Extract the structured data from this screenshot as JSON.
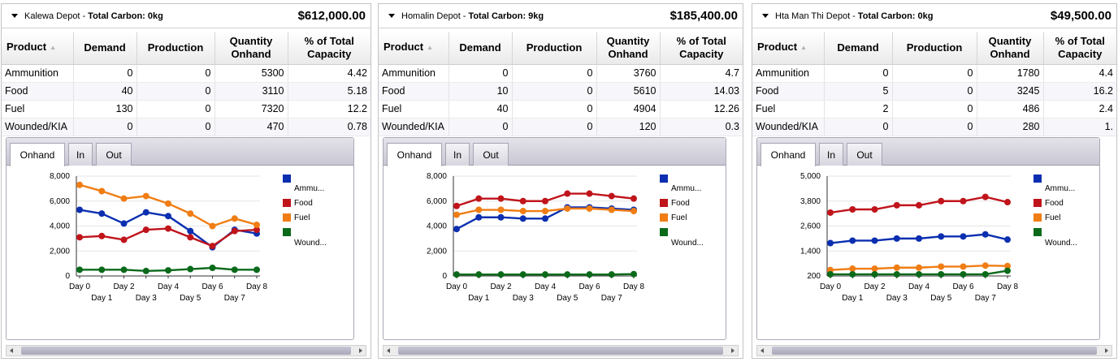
{
  "ui": {
    "total_carbon_label": "Total Carbon:",
    "separator": "-",
    "columns": [
      "Product",
      "Demand",
      "Production",
      "Quantity Onhand",
      "% of Total Capacity"
    ],
    "tabs": [
      "Onhand",
      "In",
      "Out"
    ],
    "sort_icon": "sort-ascending-icon"
  },
  "colors": {
    "ammunition": "#0b2fb0",
    "food": "#c0141b",
    "fuel": "#f07d14",
    "wounded": "#0a6a1a"
  },
  "depots": [
    {
      "name": "Kalewa Depot",
      "carbon": "0kg",
      "money": "$612,000.00",
      "rows": [
        {
          "product": "Ammunition",
          "demand": "0",
          "production": "0",
          "onhand": "5300",
          "pct": "4.42"
        },
        {
          "product": "Food",
          "demand": "40",
          "production": "0",
          "onhand": "3110",
          "pct": "5.18"
        },
        {
          "product": "Fuel",
          "demand": "130",
          "production": "0",
          "onhand": "7320",
          "pct": "12.2"
        },
        {
          "product": "Wounded/KIA",
          "demand": "0",
          "production": "0",
          "onhand": "470",
          "pct": "0.78"
        }
      ],
      "chart_data": {
        "type": "line",
        "x": [
          "Day 0",
          "Day 1",
          "Day 2",
          "Day 3",
          "Day 4",
          "Day 5",
          "Day 6",
          "Day 7",
          "Day 8"
        ],
        "y_ticks": [
          "0",
          "2,000",
          "4,000",
          "6,000",
          "8,000"
        ],
        "ylim": [
          0,
          8000
        ],
        "legend": [
          "Ammu...",
          "Food",
          "Fuel",
          "Wound..."
        ],
        "series": [
          {
            "name": "Ammu...",
            "color": "#0b2fb0",
            "values": [
              5300,
              5000,
              4200,
              5100,
              4800,
              3600,
              2300,
              3700,
              3400
            ]
          },
          {
            "name": "Food",
            "color": "#c0141b",
            "values": [
              3100,
              3200,
              2900,
              3700,
              3800,
              3100,
              2400,
              3600,
              3700
            ]
          },
          {
            "name": "Fuel",
            "color": "#f07d14",
            "values": [
              7300,
              6800,
              6200,
              6400,
              5800,
              5000,
              4000,
              4600,
              4100
            ]
          },
          {
            "name": "Wound...",
            "color": "#0a6a1a",
            "values": [
              500,
              500,
              500,
              400,
              450,
              550,
              650,
              500,
              500
            ]
          }
        ]
      }
    },
    {
      "name": "Homalin Depot",
      "carbon": "9kg",
      "money": "$185,400.00",
      "rows": [
        {
          "product": "Ammunition",
          "demand": "0",
          "production": "0",
          "onhand": "3760",
          "pct": "4.7"
        },
        {
          "product": "Food",
          "demand": "10",
          "production": "0",
          "onhand": "5610",
          "pct": "14.03"
        },
        {
          "product": "Fuel",
          "demand": "40",
          "production": "0",
          "onhand": "4904",
          "pct": "12.26"
        },
        {
          "product": "Wounded/KIA",
          "demand": "0",
          "production": "0",
          "onhand": "120",
          "pct": "0.3"
        }
      ],
      "chart_data": {
        "type": "line",
        "x": [
          "Day 0",
          "Day 1",
          "Day 2",
          "Day 3",
          "Day 4",
          "Day 5",
          "Day 6",
          "Day 7",
          "Day 8"
        ],
        "y_ticks": [
          "0",
          "2,000",
          "4,000",
          "6,000",
          "8,000"
        ],
        "ylim": [
          0,
          8000
        ],
        "legend": [
          "Ammu...",
          "Food",
          "Fuel",
          "Wound..."
        ],
        "series": [
          {
            "name": "Ammu...",
            "color": "#0b2fb0",
            "values": [
              3760,
              4700,
              4700,
              4600,
              4600,
              5500,
              5500,
              5400,
              5300
            ]
          },
          {
            "name": "Food",
            "color": "#c0141b",
            "values": [
              5610,
              6200,
              6200,
              6000,
              6000,
              6600,
              6600,
              6400,
              6200
            ]
          },
          {
            "name": "Fuel",
            "color": "#f07d14",
            "values": [
              4904,
              5300,
              5300,
              5200,
              5200,
              5400,
              5400,
              5300,
              5200
            ]
          },
          {
            "name": "Wound...",
            "color": "#0a6a1a",
            "values": [
              120,
              120,
              120,
              120,
              120,
              120,
              120,
              120,
              150
            ]
          }
        ]
      }
    },
    {
      "name": "Hta Man Thi Depot",
      "carbon": "0kg",
      "money": "$49,500.00",
      "rows": [
        {
          "product": "Ammunition",
          "demand": "0",
          "production": "0",
          "onhand": "1780",
          "pct": "4.4"
        },
        {
          "product": "Food",
          "demand": "5",
          "production": "0",
          "onhand": "3245",
          "pct": "16.2"
        },
        {
          "product": "Fuel",
          "demand": "2",
          "production": "0",
          "onhand": "486",
          "pct": "2.4"
        },
        {
          "product": "Wounded/KIA",
          "demand": "0",
          "production": "0",
          "onhand": "280",
          "pct": "1."
        }
      ],
      "chart_data": {
        "type": "line",
        "x": [
          "Day 0",
          "Day 1",
          "Day 2",
          "Day 3",
          "Day 4",
          "Day 5",
          "Day 6",
          "Day 7",
          "Day 8"
        ],
        "y_ticks": [
          "200",
          "1,400",
          "2,600",
          "3,800",
          "5,000"
        ],
        "ylim": [
          200,
          5000
        ],
        "legend": [
          "Ammu...",
          "Food",
          "Fuel",
          "Wound..."
        ],
        "series": [
          {
            "name": "Ammu...",
            "color": "#0b2fb0",
            "values": [
              1780,
              1900,
              1900,
              2000,
              2000,
              2100,
              2100,
              2200,
              1950
            ]
          },
          {
            "name": "Food",
            "color": "#c0141b",
            "values": [
              3245,
              3400,
              3400,
              3600,
              3600,
              3800,
              3800,
              4000,
              3750
            ]
          },
          {
            "name": "Fuel",
            "color": "#f07d14",
            "values": [
              486,
              550,
              550,
              600,
              600,
              650,
              650,
              700,
              680
            ]
          },
          {
            "name": "Wound...",
            "color": "#0a6a1a",
            "values": [
              280,
              280,
              280,
              280,
              280,
              280,
              280,
              280,
              450
            ]
          }
        ]
      }
    }
  ]
}
